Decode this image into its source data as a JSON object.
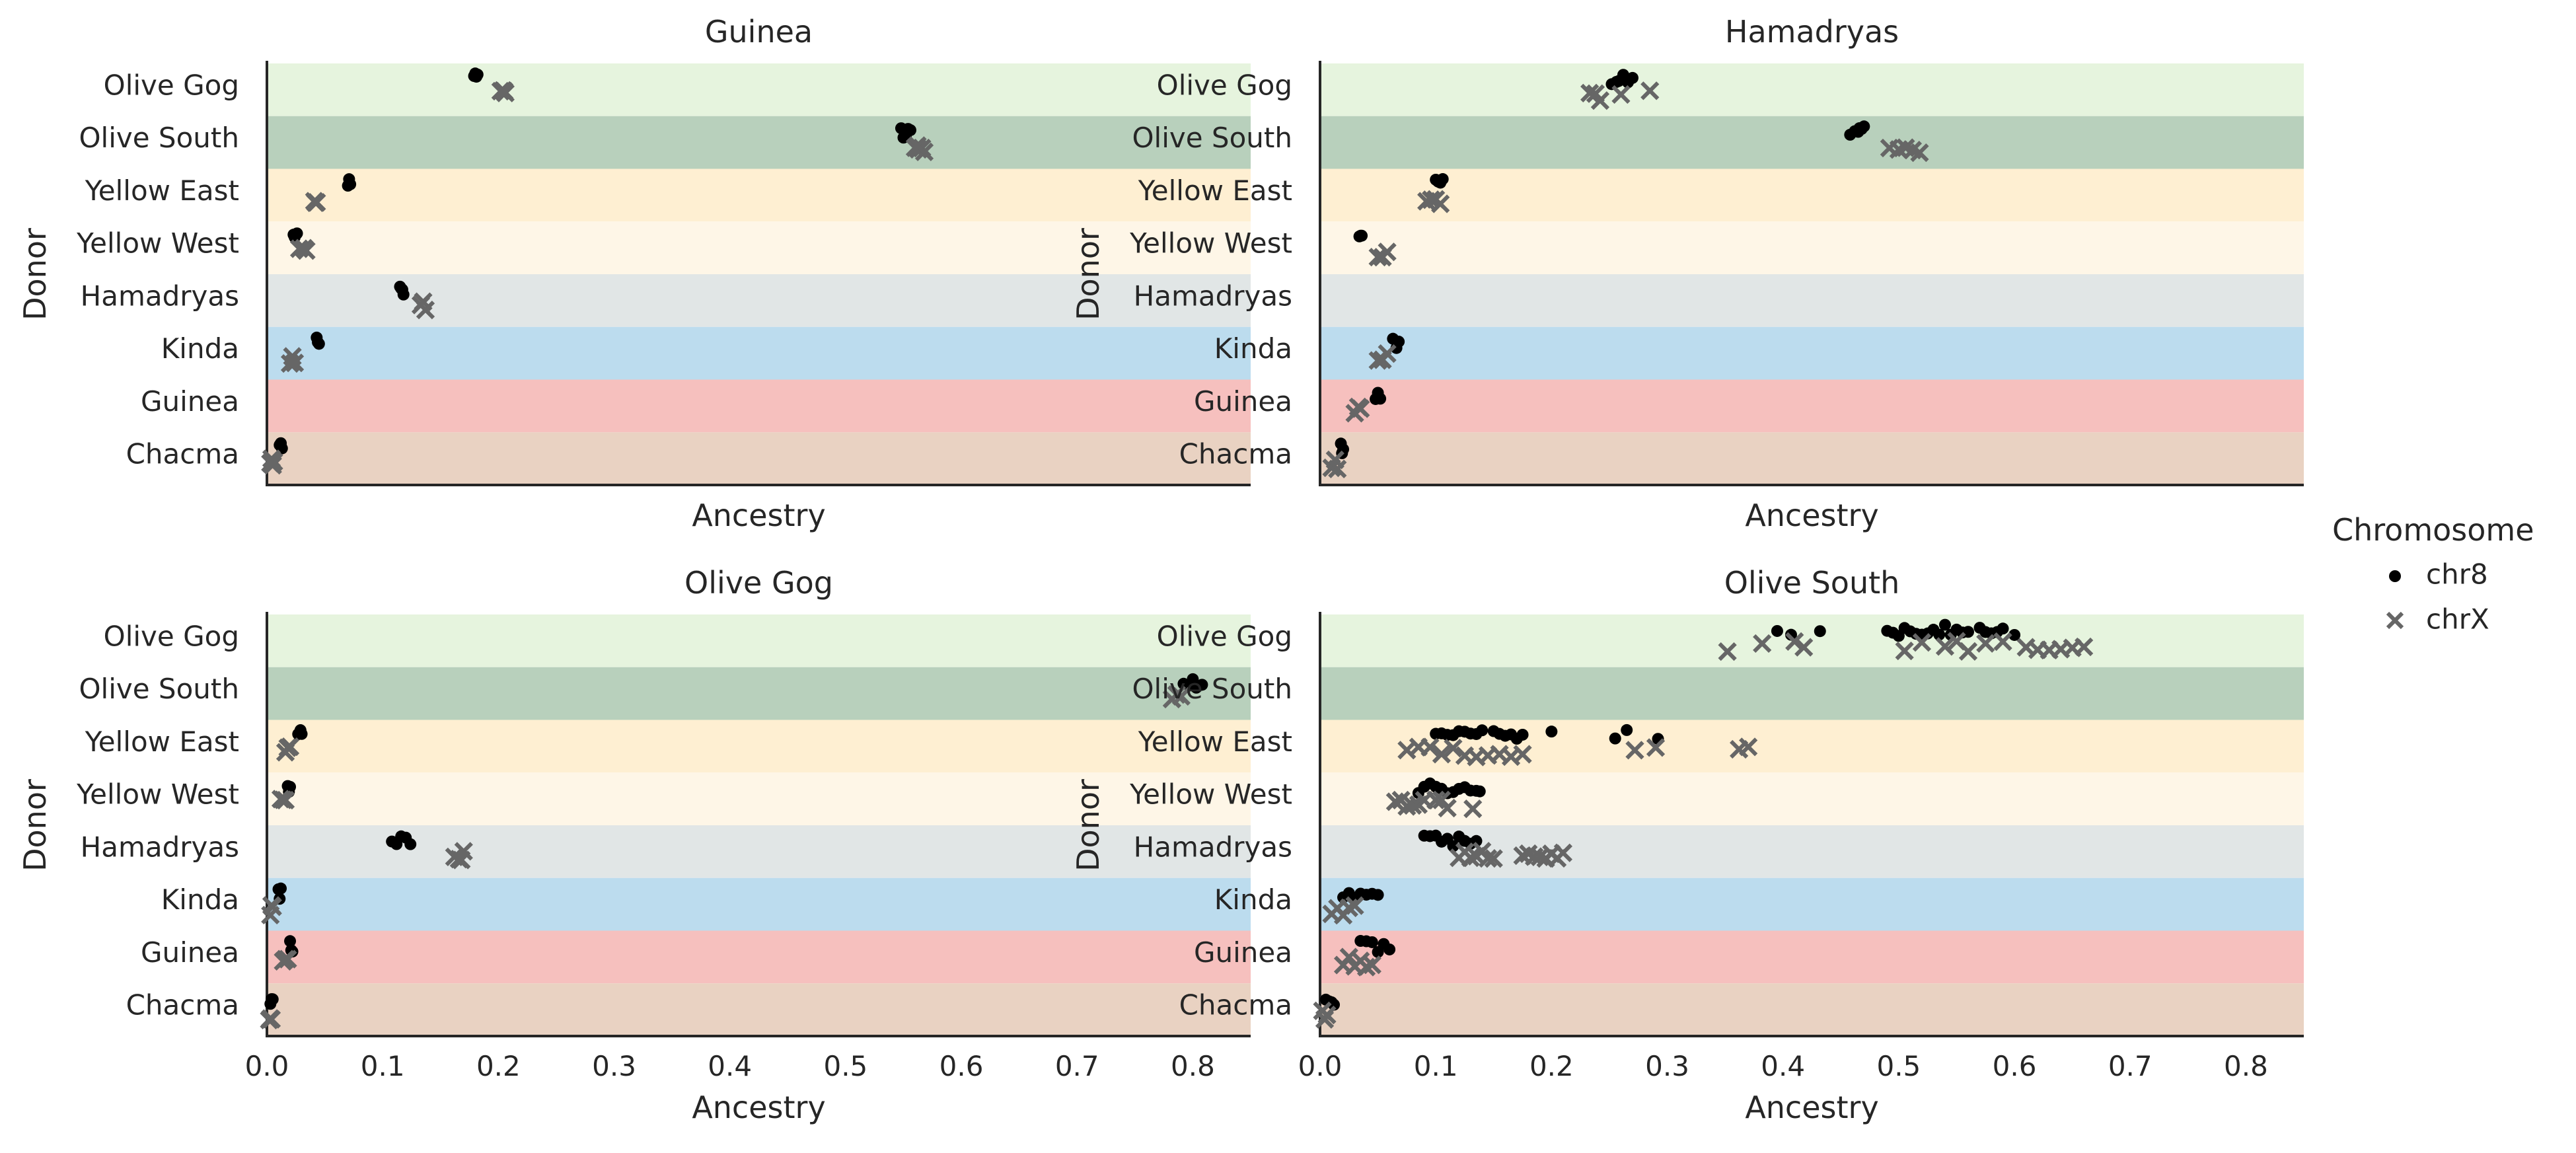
{
  "figure": {
    "legend": {
      "title": "Chromosome",
      "entries": [
        {
          "label": "chr8",
          "marker": "dot-icon",
          "color": "#000000"
        },
        {
          "label": "chrX",
          "marker": "x-mark-icon",
          "color": "#666666"
        }
      ]
    },
    "band_colors": {
      "Olive Gog": "#e6f4de",
      "Olive South": "#b8d0bc",
      "Yellow East": "#feefd2",
      "Yellow West": "#fef6e7",
      "Hamadryas": "#e1e6e6",
      "Kinda": "#bcdcee",
      "Guinea": "#f6c0be",
      "Chacma": "#e9d2c2"
    }
  },
  "chart_data": [
    {
      "type": "scatter",
      "title": "Guinea",
      "xlabel": "Ancestry",
      "ylabel": "Donor",
      "xlim": [
        0,
        0.85
      ],
      "show_x_ticks": false,
      "categories": [
        "Olive Gog",
        "Olive South",
        "Yellow East",
        "Yellow West",
        "Hamadryas",
        "Kinda",
        "Guinea",
        "Chacma"
      ],
      "series": [
        {
          "name": "chr8",
          "points": [
            {
              "donor": "Olive Gog",
              "x": [
                0.18,
                0.179,
                0.182,
                0.181
              ]
            },
            {
              "donor": "Olive South",
              "x": [
                0.548,
                0.55,
                0.552,
                0.554,
                0.556
              ]
            },
            {
              "donor": "Yellow East",
              "x": [
                0.071,
                0.072,
                0.07
              ]
            },
            {
              "donor": "Yellow West",
              "x": [
                0.023,
                0.024,
                0.026
              ]
            },
            {
              "donor": "Hamadryas",
              "x": [
                0.115,
                0.117,
                0.118,
                0.116
              ]
            },
            {
              "donor": "Kinda",
              "x": [
                0.043,
                0.044,
                0.045
              ]
            },
            {
              "donor": "Guinea",
              "x": []
            },
            {
              "donor": "Chacma",
              "x": [
                0.012,
                0.013,
                0.011,
                0.012
              ]
            }
          ]
        },
        {
          "name": "chrX",
          "points": [
            {
              "donor": "Olive Gog",
              "x": [
                0.202,
                0.204,
                0.206,
                0.205
              ]
            },
            {
              "donor": "Olive South",
              "x": [
                0.56,
                0.563,
                0.566,
                0.568,
                0.562
              ]
            },
            {
              "donor": "Yellow East",
              "x": [
                0.041,
                0.043,
                0.042
              ]
            },
            {
              "donor": "Yellow West",
              "x": [
                0.028,
                0.032,
                0.034
              ]
            },
            {
              "donor": "Hamadryas",
              "x": [
                0.133,
                0.135,
                0.137
              ]
            },
            {
              "donor": "Kinda",
              "x": [
                0.02,
                0.022,
                0.024
              ]
            },
            {
              "donor": "Guinea",
              "x": []
            },
            {
              "donor": "Chacma",
              "x": [
                0.004,
                0.006,
                0.003,
                0.005
              ]
            }
          ]
        }
      ]
    },
    {
      "type": "scatter",
      "title": "Hamadryas",
      "xlabel": "Ancestry",
      "ylabel": "Donor",
      "xlim": [
        0,
        0.85
      ],
      "show_x_ticks": false,
      "categories": [
        "Olive Gog",
        "Olive South",
        "Yellow East",
        "Yellow West",
        "Hamadryas",
        "Kinda",
        "Guinea",
        "Chacma"
      ],
      "series": [
        {
          "name": "chr8",
          "points": [
            {
              "donor": "Olive Gog",
              "x": [
                0.252,
                0.256,
                0.262,
                0.266,
                0.27,
                0.258
              ]
            },
            {
              "donor": "Olive South",
              "x": [
                0.458,
                0.462,
                0.465,
                0.468,
                0.47,
                0.466
              ]
            },
            {
              "donor": "Yellow East",
              "x": [
                0.1,
                0.102,
                0.104,
                0.106
              ]
            },
            {
              "donor": "Yellow West",
              "x": [
                0.034,
                0.035,
                0.036
              ]
            },
            {
              "donor": "Hamadryas",
              "x": []
            },
            {
              "donor": "Kinda",
              "x": [
                0.063,
                0.066,
                0.068
              ]
            },
            {
              "donor": "Guinea",
              "x": [
                0.048,
                0.05,
                0.052
              ]
            },
            {
              "donor": "Chacma",
              "x": [
                0.018,
                0.02,
                0.019
              ]
            }
          ]
        },
        {
          "name": "chrX",
          "points": [
            {
              "donor": "Olive Gog",
              "x": [
                0.233,
                0.238,
                0.242,
                0.26,
                0.285
              ]
            },
            {
              "donor": "Olive South",
              "x": [
                0.492,
                0.5,
                0.506,
                0.512,
                0.518
              ]
            },
            {
              "donor": "Yellow East",
              "x": [
                0.092,
                0.096,
                0.1,
                0.104
              ]
            },
            {
              "donor": "Yellow West",
              "x": [
                0.05,
                0.054,
                0.058
              ]
            },
            {
              "donor": "Hamadryas",
              "x": []
            },
            {
              "donor": "Kinda",
              "x": [
                0.05,
                0.054,
                0.058
              ]
            },
            {
              "donor": "Guinea",
              "x": [
                0.03,
                0.033,
                0.035
              ]
            },
            {
              "donor": "Chacma",
              "x": [
                0.01,
                0.013,
                0.015
              ]
            }
          ]
        }
      ]
    },
    {
      "type": "scatter",
      "title": "Olive Gog",
      "xlabel": "Ancestry",
      "ylabel": "Donor",
      "xlim": [
        0,
        0.85
      ],
      "show_x_ticks": true,
      "x_ticks": [
        "0.0",
        "0.1",
        "0.2",
        "0.3",
        "0.4",
        "0.5",
        "0.6",
        "0.7",
        "0.8"
      ],
      "categories": [
        "Olive Gog",
        "Olive South",
        "Yellow East",
        "Yellow West",
        "Hamadryas",
        "Kinda",
        "Guinea",
        "Chacma"
      ],
      "series": [
        {
          "name": "chr8",
          "points": [
            {
              "donor": "Olive Gog",
              "x": []
            },
            {
              "donor": "Olive South",
              "x": [
                0.792,
                0.798,
                0.803,
                0.808,
                0.8
              ]
            },
            {
              "donor": "Yellow East",
              "x": [
                0.027,
                0.029,
                0.03
              ]
            },
            {
              "donor": "Yellow West",
              "x": [
                0.018,
                0.019,
                0.02
              ]
            },
            {
              "donor": "Hamadryas",
              "x": [
                0.108,
                0.112,
                0.116,
                0.12,
                0.124
              ]
            },
            {
              "donor": "Kinda",
              "x": [
                0.01,
                0.011,
                0.012
              ]
            },
            {
              "donor": "Guinea",
              "x": [
                0.02,
                0.021,
                0.022
              ]
            },
            {
              "donor": "Chacma",
              "x": [
                0.003,
                0.004,
                0.005
              ]
            }
          ]
        },
        {
          "name": "chrX",
          "points": [
            {
              "donor": "Olive Gog",
              "x": []
            },
            {
              "donor": "Olive South",
              "x": [
                0.782,
                0.786,
                0.79
              ]
            },
            {
              "donor": "Yellow East",
              "x": [
                0.016,
                0.018,
                0.02
              ]
            },
            {
              "donor": "Yellow West",
              "x": [
                0.012,
                0.014,
                0.016
              ]
            },
            {
              "donor": "Hamadryas",
              "x": [
                0.162,
                0.166,
                0.17,
                0.168
              ]
            },
            {
              "donor": "Kinda",
              "x": [
                0.003,
                0.004,
                0.005
              ]
            },
            {
              "donor": "Guinea",
              "x": [
                0.014,
                0.016,
                0.018
              ]
            },
            {
              "donor": "Chacma",
              "x": [
                0.002,
                0.003,
                0.004
              ]
            }
          ]
        }
      ]
    },
    {
      "type": "scatter",
      "title": "Olive South",
      "xlabel": "Ancestry",
      "ylabel": "Donor",
      "xlim": [
        0,
        0.85
      ],
      "show_x_ticks": true,
      "x_ticks": [
        "0.0",
        "0.1",
        "0.2",
        "0.3",
        "0.4",
        "0.5",
        "0.6",
        "0.7",
        "0.8"
      ],
      "categories": [
        "Olive Gog",
        "Olive South",
        "Yellow East",
        "Yellow West",
        "Hamadryas",
        "Kinda",
        "Guinea",
        "Chacma"
      ],
      "series": [
        {
          "name": "chr8",
          "points": [
            {
              "donor": "Olive Gog",
              "x": [
                0.395,
                0.407,
                0.432,
                0.49,
                0.495,
                0.5,
                0.505,
                0.51,
                0.515,
                0.52,
                0.525,
                0.53,
                0.535,
                0.54,
                0.545,
                0.55,
                0.555,
                0.56,
                0.57,
                0.575,
                0.58,
                0.585,
                0.59,
                0.6
              ]
            },
            {
              "donor": "Olive South",
              "x": []
            },
            {
              "donor": "Yellow East",
              "x": [
                0.1,
                0.105,
                0.11,
                0.115,
                0.12,
                0.125,
                0.13,
                0.135,
                0.14,
                0.15,
                0.155,
                0.16,
                0.165,
                0.17,
                0.175,
                0.2,
                0.255,
                0.265,
                0.292
              ]
            },
            {
              "donor": "Yellow West",
              "x": [
                0.085,
                0.09,
                0.095,
                0.1,
                0.105,
                0.11,
                0.115,
                0.12,
                0.125,
                0.13,
                0.135,
                0.138
              ]
            },
            {
              "donor": "Hamadryas",
              "x": [
                0.09,
                0.095,
                0.1,
                0.105,
                0.11,
                0.115,
                0.12,
                0.125,
                0.13,
                0.135
              ]
            },
            {
              "donor": "Kinda",
              "x": [
                0.02,
                0.025,
                0.03,
                0.035,
                0.04,
                0.045,
                0.05
              ]
            },
            {
              "donor": "Guinea",
              "x": [
                0.035,
                0.04,
                0.045,
                0.05,
                0.055,
                0.06
              ]
            },
            {
              "donor": "Chacma",
              "x": [
                0.005,
                0.008,
                0.01,
                0.012
              ]
            }
          ]
        },
        {
          "name": "chrX",
          "points": [
            {
              "donor": "Olive Gog",
              "x": [
                0.352,
                0.382,
                0.41,
                0.418,
                0.505,
                0.52,
                0.54,
                0.55,
                0.56,
                0.575,
                0.59,
                0.61,
                0.62,
                0.63,
                0.64,
                0.65,
                0.66
              ]
            },
            {
              "donor": "Olive South",
              "x": []
            },
            {
              "donor": "Yellow East",
              "x": [
                0.075,
                0.085,
                0.095,
                0.105,
                0.115,
                0.125,
                0.135,
                0.145,
                0.155,
                0.165,
                0.175,
                0.272,
                0.29,
                0.362,
                0.37
              ]
            },
            {
              "donor": "Yellow West",
              "x": [
                0.065,
                0.07,
                0.075,
                0.08,
                0.085,
                0.09,
                0.1,
                0.105,
                0.11,
                0.132
              ]
            },
            {
              "donor": "Hamadryas",
              "x": [
                0.12,
                0.125,
                0.13,
                0.135,
                0.14,
                0.145,
                0.15,
                0.175,
                0.18,
                0.185,
                0.19,
                0.195,
                0.2,
                0.205,
                0.21
              ]
            },
            {
              "donor": "Kinda",
              "x": [
                0.01,
                0.015,
                0.02,
                0.025,
                0.03
              ]
            },
            {
              "donor": "Guinea",
              "x": [
                0.02,
                0.025,
                0.03,
                0.035,
                0.04,
                0.045
              ]
            },
            {
              "donor": "Chacma",
              "x": [
                0.002,
                0.004,
                0.006
              ]
            }
          ]
        }
      ]
    }
  ]
}
